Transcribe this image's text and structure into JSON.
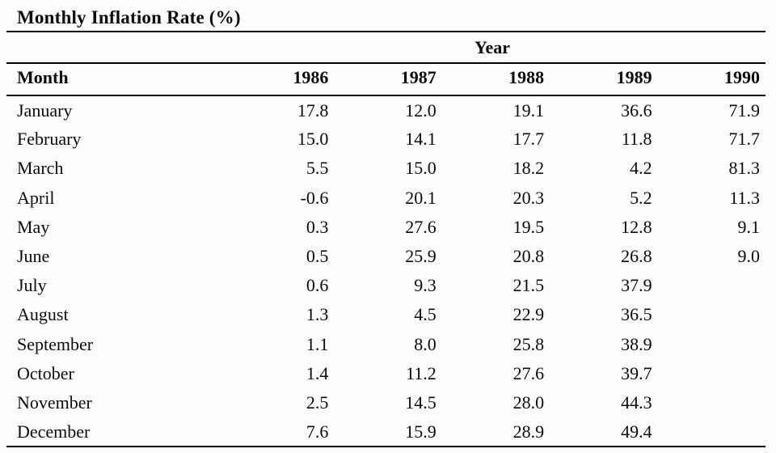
{
  "title": "Monthly Inflation Rate (%)",
  "table": {
    "group_header": "Year",
    "month_header": "Month",
    "years": [
      "1986",
      "1987",
      "1988",
      "1989",
      "1990"
    ],
    "rows": [
      {
        "month": "January",
        "values": [
          "17.8",
          "12.0",
          "19.1",
          "36.6",
          "71.9"
        ]
      },
      {
        "month": "February",
        "values": [
          "15.0",
          "14.1",
          "17.7",
          "11.8",
          "71.7"
        ]
      },
      {
        "month": "March",
        "values": [
          "5.5",
          "15.0",
          "18.2",
          "4.2",
          "81.3"
        ]
      },
      {
        "month": "April",
        "values": [
          "-0.6",
          "20.1",
          "20.3",
          "5.2",
          "11.3"
        ]
      },
      {
        "month": "May",
        "values": [
          "0.3",
          "27.6",
          "19.5",
          "12.8",
          "9.1"
        ]
      },
      {
        "month": "June",
        "values": [
          "0.5",
          "25.9",
          "20.8",
          "26.8",
          "9.0"
        ]
      },
      {
        "month": "July",
        "values": [
          "0.6",
          "9.3",
          "21.5",
          "37.9",
          ""
        ]
      },
      {
        "month": "August",
        "values": [
          "1.3",
          "4.5",
          "22.9",
          "36.5",
          ""
        ]
      },
      {
        "month": "September",
        "values": [
          "1.1",
          "8.0",
          "25.8",
          "38.9",
          ""
        ]
      },
      {
        "month": "October",
        "values": [
          "1.4",
          "11.2",
          "27.6",
          "39.7",
          ""
        ]
      },
      {
        "month": "November",
        "values": [
          "2.5",
          "14.5",
          "28.0",
          "44.3",
          ""
        ]
      },
      {
        "month": "December",
        "values": [
          "7.6",
          "15.9",
          "28.9",
          "49.4",
          ""
        ]
      }
    ]
  },
  "chart_data": {
    "type": "table",
    "title": "Monthly Inflation Rate (%)",
    "categories": [
      "January",
      "February",
      "March",
      "April",
      "May",
      "June",
      "July",
      "August",
      "September",
      "October",
      "November",
      "December"
    ],
    "series": [
      {
        "name": "1986",
        "values": [
          17.8,
          15.0,
          5.5,
          -0.6,
          0.3,
          0.5,
          0.6,
          1.3,
          1.1,
          1.4,
          2.5,
          7.6
        ]
      },
      {
        "name": "1987",
        "values": [
          12.0,
          14.1,
          15.0,
          20.1,
          27.6,
          25.9,
          9.3,
          4.5,
          8.0,
          11.2,
          14.5,
          15.9
        ]
      },
      {
        "name": "1988",
        "values": [
          19.1,
          17.7,
          18.2,
          20.3,
          19.5,
          20.8,
          21.5,
          22.9,
          25.8,
          27.6,
          28.0,
          28.9
        ]
      },
      {
        "name": "1989",
        "values": [
          36.6,
          11.8,
          4.2,
          5.2,
          12.8,
          26.8,
          37.9,
          36.5,
          38.9,
          39.7,
          44.3,
          49.4
        ]
      },
      {
        "name": "1990",
        "values": [
          71.9,
          71.7,
          81.3,
          11.3,
          9.1,
          9.0,
          null,
          null,
          null,
          null,
          null,
          null
        ]
      }
    ]
  },
  "colors": {
    "text": "#0b0b0b",
    "rule": "#000000",
    "background": "#fdfdfd"
  }
}
